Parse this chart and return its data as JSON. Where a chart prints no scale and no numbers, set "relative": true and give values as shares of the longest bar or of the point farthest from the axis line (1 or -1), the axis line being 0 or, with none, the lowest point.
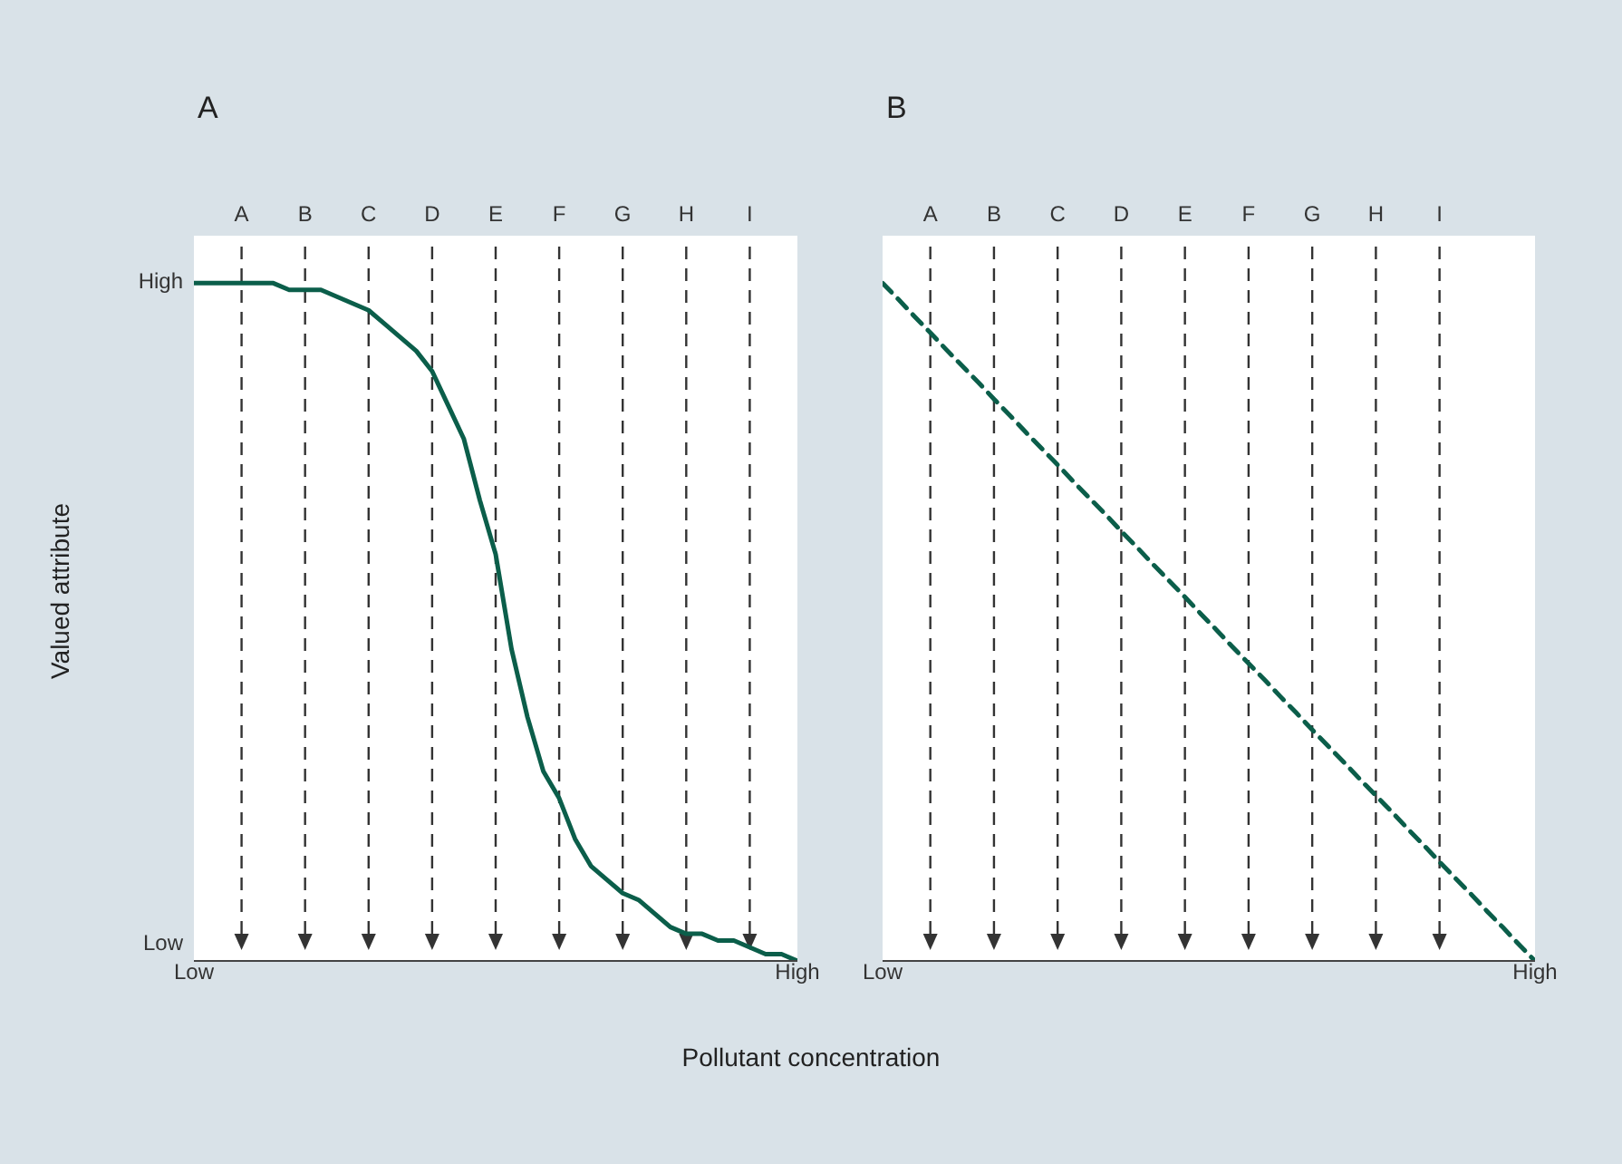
{
  "chart_data": [
    {
      "type": "line",
      "title": "A",
      "ylabel": "Valued attribute",
      "xlabel": "Pollutant concentration",
      "relative": true,
      "annotations": [
        "High",
        "Low",
        "Low",
        "High"
      ],
      "marker": "none",
      "line_style": "solid",
      "categories": [
        null,
        null,
        null,
        "A",
        null,
        null,
        null,
        "B",
        null,
        null,
        null,
        "C",
        null,
        null,
        null,
        "D",
        null,
        null,
        null,
        "E",
        null,
        null,
        null,
        "F",
        null,
        null,
        null,
        "G",
        null,
        null,
        null,
        "H",
        null,
        null,
        null,
        "I",
        null,
        null,
        null
      ],
      "series": [
        {
          "color": "#0b5e4a",
          "values": [
            1,
            1,
            1,
            1,
            1,
            1,
            0.99,
            0.99,
            0.99,
            0.98,
            0.97,
            0.96,
            0.94,
            0.92,
            0.9,
            0.87,
            0.82,
            0.77,
            0.68,
            0.6,
            0.46,
            0.36,
            0.28,
            0.24,
            0.18,
            0.14,
            0.12,
            0.1,
            0.09,
            0.07,
            0.05,
            0.04,
            0.04,
            0.03,
            0.03,
            0.02,
            0.01,
            0.01,
            0
          ]
        }
      ],
      "ref_lines": [
        {
          "axis": "x",
          "value": "A",
          "color": "#333333",
          "line_style": "dashed"
        },
        {
          "axis": "x",
          "value": "B",
          "color": "#333333",
          "line_style": "dashed"
        },
        {
          "axis": "x",
          "value": "C",
          "color": "#333333",
          "line_style": "dashed"
        },
        {
          "axis": "x",
          "value": "D",
          "color": "#333333",
          "line_style": "dashed"
        },
        {
          "axis": "x",
          "value": "E",
          "color": "#333333",
          "line_style": "dashed"
        },
        {
          "axis": "x",
          "value": "F",
          "color": "#333333",
          "line_style": "dashed"
        },
        {
          "axis": "x",
          "value": "G",
          "color": "#333333",
          "line_style": "dashed"
        },
        {
          "axis": "x",
          "value": "H",
          "color": "#333333",
          "line_style": "dashed"
        },
        {
          "axis": "x",
          "value": "I",
          "color": "#333333",
          "line_style": "dashed"
        }
      ]
    },
    {
      "type": "line",
      "title": "B",
      "relative": true,
      "annotations": [
        "Low",
        "High"
      ],
      "marker": "none",
      "line_style": "dashed",
      "categories": [
        null,
        null,
        null,
        "A",
        null,
        null,
        null,
        "B",
        null,
        null,
        null,
        "C",
        null,
        null,
        null,
        "D",
        null,
        null,
        null,
        "E",
        null,
        null,
        null,
        "F",
        null,
        null,
        null,
        "G",
        null,
        null,
        null,
        "H",
        null,
        null,
        null,
        "I",
        null,
        null,
        null,
        null,
        null,
        null
      ],
      "series": [
        {
          "color": "#0b5e4a",
          "values": [
            1,
            0.976,
            0.951,
            0.927,
            0.902,
            0.878,
            0.854,
            0.829,
            0.805,
            0.78,
            0.756,
            0.732,
            0.707,
            0.683,
            0.659,
            0.634,
            0.61,
            0.585,
            0.561,
            0.537,
            0.512,
            0.488,
            0.463,
            0.439,
            0.415,
            0.39,
            0.366,
            0.341,
            0.317,
            0.293,
            0.268,
            0.244,
            0.22,
            0.195,
            0.171,
            0.146,
            0.122,
            0.098,
            0.073,
            0.049,
            0.024,
            0
          ]
        }
      ],
      "ref_lines": [
        {
          "axis": "x",
          "value": "A",
          "color": "#333333",
          "line_style": "dashed"
        },
        {
          "axis": "x",
          "value": "B",
          "color": "#333333",
          "line_style": "dashed"
        },
        {
          "axis": "x",
          "value": "C",
          "color": "#333333",
          "line_style": "dashed"
        },
        {
          "axis": "x",
          "value": "D",
          "color": "#333333",
          "line_style": "dashed"
        },
        {
          "axis": "x",
          "value": "E",
          "color": "#333333",
          "line_style": "dashed"
        },
        {
          "axis": "x",
          "value": "F",
          "color": "#333333",
          "line_style": "dashed"
        },
        {
          "axis": "x",
          "value": "G",
          "color": "#333333",
          "line_style": "dashed"
        },
        {
          "axis": "x",
          "value": "H",
          "color": "#333333",
          "line_style": "dashed"
        },
        {
          "axis": "x",
          "value": "I",
          "color": "#333333",
          "line_style": "dashed"
        }
      ]
    }
  ]
}
